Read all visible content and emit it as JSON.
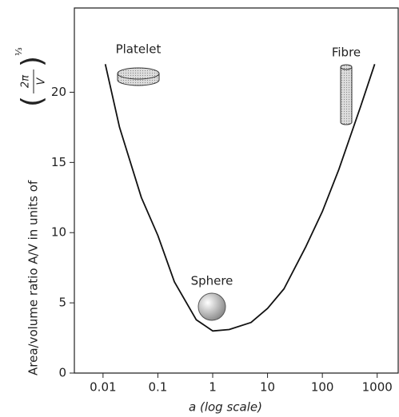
{
  "chart_data": {
    "type": "line",
    "xlabel": "a (log scale)",
    "ylabel": "Area/volume ratio A/V in units of",
    "ylabel_unit": {
      "numerator": "2π",
      "denominator": "V",
      "exponent": "⅓"
    },
    "annotations": [
      "Platelet",
      "Fibre",
      "Sphere"
    ],
    "xscale": "log",
    "x": [
      0.011,
      0.02,
      0.05,
      0.1,
      0.2,
      0.5,
      1,
      2,
      5,
      10,
      20,
      50,
      100,
      200,
      500,
      900
    ],
    "series": [
      {
        "color": "#111111",
        "values": [
          22,
          17.5,
          12.5,
          9.8,
          6.5,
          3.8,
          3.0,
          3.1,
          3.6,
          4.6,
          6.0,
          9.0,
          11.5,
          14.5,
          19,
          22
        ]
      }
    ],
    "xlim": [
      0.003,
      2500
    ],
    "xticks": [
      0.01,
      0.1,
      1,
      10,
      100,
      1000
    ],
    "ylim": [
      0,
      26
    ],
    "yticks": [
      0,
      5,
      10,
      15,
      20
    ]
  }
}
